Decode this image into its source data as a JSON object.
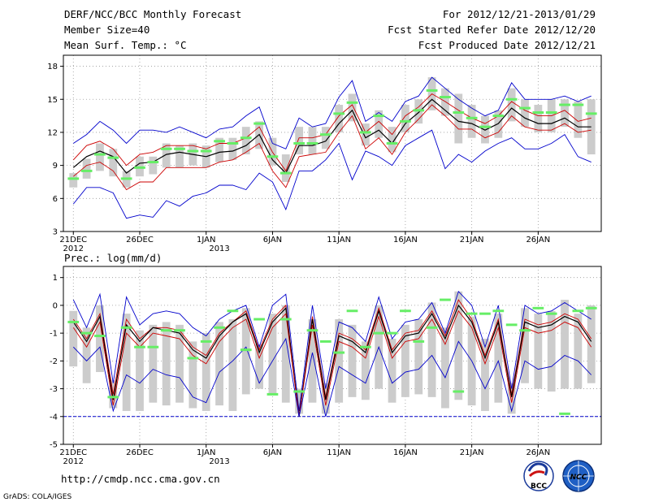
{
  "header": {
    "title": "DERF/NCC/BCC Monthly Forecast",
    "member_size": "Member Size=40",
    "variable": "Mean Surf. Temp.: °C",
    "period": "For 2012/12/21-2013/01/29",
    "fcst_started": "Fcst Started Refer Date 2012/12/20",
    "fcst_produced": "Fcst Produced Date 2012/12/21"
  },
  "footer": {
    "url": "http://cmdp.ncc.cma.gov.cn",
    "credit": "GrADS: COLA/IGES",
    "logo_left_text": "BCC",
    "logo_right_text": "NCC"
  },
  "colors": {
    "mean": "#000000",
    "spread": "#cc0000",
    "extreme": "#0000cc",
    "box": "#cccccc",
    "median": "#66ee66",
    "zero_line": "#0000cc"
  },
  "chart_data": [
    {
      "type": "line",
      "title": "Mean Surf. Temp.: °C",
      "days": 40,
      "ylim": [
        3,
        19
      ],
      "yticks": [
        3,
        6,
        9,
        12,
        15,
        18
      ],
      "xtick_labels": [
        "21DEC",
        "26DEC",
        "1JAN",
        "6JAN",
        "11JAN",
        "16JAN",
        "21JAN",
        "26JAN"
      ],
      "year_labels": [
        {
          "day": 1,
          "text": "2012"
        },
        {
          "day": 12,
          "text": "2013"
        }
      ],
      "series": [
        {
          "name": "max",
          "color_key": "extreme",
          "values": [
            11.0,
            11.8,
            13.0,
            12.2,
            11.0,
            12.2,
            12.2,
            12.0,
            12.5,
            12.0,
            11.5,
            12.3,
            12.5,
            13.5,
            14.3,
            11.0,
            10.5,
            13.3,
            12.5,
            12.8,
            15.2,
            16.7,
            13.0,
            13.8,
            13.0,
            14.8,
            15.3,
            17.0,
            16.0,
            15.0,
            14.2,
            13.5,
            14.0,
            16.5,
            15.0,
            15.0,
            15.0,
            15.3,
            14.8,
            15.3
          ]
        },
        {
          "name": "upper",
          "color_key": "spread",
          "values": [
            9.5,
            10.8,
            11.2,
            10.5,
            9.0,
            10.0,
            10.2,
            10.8,
            10.8,
            10.8,
            10.5,
            11.0,
            11.0,
            11.5,
            12.5,
            10.2,
            8.5,
            11.5,
            11.5,
            11.8,
            13.5,
            14.5,
            12.0,
            13.0,
            11.8,
            13.5,
            14.3,
            15.5,
            14.8,
            14.0,
            13.3,
            12.8,
            13.5,
            14.8,
            14.0,
            13.5,
            13.5,
            14.0,
            13.0,
            13.3
          ]
        },
        {
          "name": "mean",
          "color_key": "mean",
          "values": [
            8.8,
            9.8,
            10.3,
            9.8,
            8.3,
            9.2,
            9.3,
            10.0,
            10.2,
            10.0,
            9.8,
            10.2,
            10.3,
            10.8,
            11.8,
            9.5,
            8.3,
            10.8,
            10.8,
            11.2,
            12.8,
            14.0,
            11.5,
            12.2,
            11.0,
            12.8,
            13.8,
            15.0,
            14.0,
            13.0,
            12.8,
            12.2,
            12.8,
            14.2,
            13.3,
            12.8,
            12.8,
            13.3,
            12.5,
            12.5
          ]
        },
        {
          "name": "lower",
          "color_key": "spread",
          "values": [
            8.0,
            9.0,
            9.3,
            8.5,
            6.8,
            7.5,
            7.5,
            8.8,
            8.8,
            8.8,
            8.8,
            9.3,
            9.5,
            10.2,
            11.0,
            8.5,
            7.0,
            9.8,
            10.0,
            10.2,
            12.0,
            13.5,
            10.5,
            11.5,
            10.0,
            12.0,
            13.2,
            14.5,
            13.5,
            12.3,
            12.3,
            11.5,
            12.0,
            13.5,
            12.5,
            12.2,
            12.2,
            12.8,
            12.0,
            12.2
          ]
        },
        {
          "name": "min",
          "color_key": "extreme",
          "values": [
            5.5,
            7.0,
            7.0,
            6.5,
            4.2,
            4.5,
            4.3,
            5.8,
            5.3,
            6.2,
            6.5,
            7.2,
            7.2,
            6.8,
            8.3,
            7.5,
            5.0,
            8.5,
            8.5,
            9.5,
            11.0,
            7.7,
            10.3,
            9.8,
            9.0,
            10.8,
            11.5,
            12.2,
            8.7,
            10.0,
            9.3,
            10.3,
            11.0,
            11.5,
            10.5,
            10.5,
            11.0,
            11.8,
            9.8,
            9.3
          ]
        }
      ],
      "boxes": [
        {
          "day": 1,
          "low": 7.0,
          "high": 8.3
        },
        {
          "day": 2,
          "low": 7.8,
          "high": 9.6
        },
        {
          "day": 3,
          "low": 8.5,
          "high": 11.0
        },
        {
          "day": 4,
          "low": 8.0,
          "high": 10.5
        },
        {
          "day": 5,
          "low": 7.0,
          "high": 8.5
        },
        {
          "day": 6,
          "low": 8.0,
          "high": 9.8
        },
        {
          "day": 7,
          "low": 8.2,
          "high": 9.8
        },
        {
          "day": 8,
          "low": 8.8,
          "high": 11.0
        },
        {
          "day": 9,
          "low": 8.8,
          "high": 10.8
        },
        {
          "day": 10,
          "low": 9.0,
          "high": 11.0
        },
        {
          "day": 11,
          "low": 8.8,
          "high": 10.8
        },
        {
          "day": 12,
          "low": 9.3,
          "high": 11.5
        },
        {
          "day": 13,
          "low": 9.5,
          "high": 11.5
        },
        {
          "day": 14,
          "low": 10.0,
          "high": 12.5
        },
        {
          "day": 15,
          "low": 10.5,
          "high": 13.0
        },
        {
          "day": 16,
          "low": 9.0,
          "high": 11.5
        },
        {
          "day": 17,
          "low": 7.5,
          "high": 10.0
        },
        {
          "day": 18,
          "low": 10.0,
          "high": 12.5
        },
        {
          "day": 19,
          "low": 10.0,
          "high": 12.5
        },
        {
          "day": 20,
          "low": 10.5,
          "high": 12.5
        },
        {
          "day": 21,
          "low": 12.0,
          "high": 14.5
        },
        {
          "day": 22,
          "low": 13.0,
          "high": 15.5
        },
        {
          "day": 23,
          "low": 10.8,
          "high": 12.8
        },
        {
          "day": 24,
          "low": 11.5,
          "high": 14.0
        },
        {
          "day": 25,
          "low": 10.2,
          "high": 12.5
        },
        {
          "day": 26,
          "low": 12.0,
          "high": 14.5
        },
        {
          "day": 27,
          "low": 12.8,
          "high": 15.0
        },
        {
          "day": 28,
          "low": 14.0,
          "high": 17.0
        },
        {
          "day": 29,
          "low": 13.5,
          "high": 16.0
        },
        {
          "day": 30,
          "low": 11.0,
          "high": 15.5
        },
        {
          "day": 31,
          "low": 11.5,
          "high": 14.5
        },
        {
          "day": 32,
          "low": 11.0,
          "high": 13.5
        },
        {
          "day": 33,
          "low": 11.5,
          "high": 14.0
        },
        {
          "day": 34,
          "low": 13.0,
          "high": 16.0
        },
        {
          "day": 35,
          "low": 12.5,
          "high": 15.0
        },
        {
          "day": 36,
          "low": 12.0,
          "high": 14.5
        },
        {
          "day": 37,
          "low": 12.0,
          "high": 15.0
        },
        {
          "day": 38,
          "low": 12.5,
          "high": 15.0
        },
        {
          "day": 39,
          "low": 11.5,
          "high": 14.8
        },
        {
          "day": 40,
          "low": 10.0,
          "high": 15.0
        }
      ],
      "medians": [
        7.8,
        8.5,
        10.0,
        9.7,
        7.8,
        8.8,
        9.3,
        10.5,
        10.5,
        10.3,
        10.3,
        11.2,
        11.0,
        11.5,
        12.8,
        9.8,
        8.3,
        11.0,
        11.0,
        11.8,
        13.7,
        14.7,
        12.0,
        13.5,
        11.0,
        13.0,
        14.0,
        15.8,
        15.2,
        13.8,
        13.3,
        12.5,
        13.5,
        15.0,
        14.2,
        13.8,
        13.8,
        14.5,
        14.5,
        13.7
      ]
    },
    {
      "type": "line",
      "title": "Prec.: log(mm/d)",
      "days": 40,
      "ylim": [
        -5,
        1.4
      ],
      "yticks": [
        -5,
        -4,
        -3,
        -2,
        -1,
        0,
        1
      ],
      "zero_line_value": -4,
      "xtick_labels": [
        "21DEC",
        "26DEC",
        "1JAN",
        "6JAN",
        "11JAN",
        "16JAN",
        "21JAN",
        "26JAN"
      ],
      "year_labels": [
        {
          "day": 1,
          "text": "2012"
        },
        {
          "day": 12,
          "text": "2013"
        }
      ],
      "series": [
        {
          "name": "max",
          "color_key": "extreme",
          "values": [
            0.2,
            -0.8,
            0.4,
            -2.8,
            0.3,
            -0.7,
            -0.3,
            -0.2,
            -0.3,
            -0.8,
            -1.1,
            -0.5,
            -0.2,
            0.0,
            -1.5,
            0.0,
            0.4,
            -3.8,
            0.0,
            -3.0,
            -0.6,
            -0.8,
            -1.3,
            0.3,
            -1.2,
            -0.6,
            -0.5,
            0.1,
            -1.0,
            0.5,
            0.0,
            -1.5,
            0.0,
            -3.0,
            0.0,
            -0.3,
            -0.2,
            0.1,
            -0.2,
            -0.5
          ]
        },
        {
          "name": "upper",
          "color_key": "spread",
          "values": [
            -0.5,
            -1.2,
            -0.3,
            -3.2,
            -0.5,
            -1.2,
            -0.8,
            -0.8,
            -0.9,
            -1.5,
            -1.8,
            -1.0,
            -0.6,
            -0.2,
            -1.6,
            -0.5,
            0.0,
            -4.0,
            -0.4,
            -3.3,
            -1.0,
            -1.2,
            -1.6,
            -0.1,
            -1.6,
            -1.0,
            -0.9,
            -0.2,
            -1.1,
            0.2,
            -0.5,
            -1.8,
            -0.5,
            -3.2,
            -0.5,
            -0.7,
            -0.6,
            -0.3,
            -0.5,
            -1.2
          ]
        },
        {
          "name": "mean",
          "color_key": "mean",
          "values": [
            -0.6,
            -1.3,
            -0.4,
            -3.4,
            -0.7,
            -1.3,
            -0.8,
            -0.9,
            -1.0,
            -1.6,
            -1.9,
            -1.1,
            -0.6,
            -0.3,
            -1.7,
            -0.6,
            -0.1,
            -4.0,
            -0.5,
            -3.4,
            -1.1,
            -1.3,
            -1.7,
            -0.2,
            -1.7,
            -1.1,
            -1.0,
            -0.3,
            -1.2,
            0.0,
            -0.6,
            -1.9,
            -0.6,
            -3.3,
            -0.6,
            -0.8,
            -0.7,
            -0.4,
            -0.6,
            -1.3
          ]
        },
        {
          "name": "lower",
          "color_key": "spread",
          "values": [
            -0.8,
            -1.5,
            -0.6,
            -3.6,
            -1.0,
            -1.5,
            -1.0,
            -1.1,
            -1.2,
            -1.8,
            -2.1,
            -1.3,
            -0.8,
            -0.5,
            -1.9,
            -0.8,
            -0.3,
            -4.0,
            -0.7,
            -3.6,
            -1.3,
            -1.5,
            -1.9,
            -0.4,
            -1.9,
            -1.3,
            -1.2,
            -0.5,
            -1.4,
            -0.2,
            -0.8,
            -2.1,
            -0.8,
            -3.5,
            -0.8,
            -1.0,
            -0.9,
            -0.6,
            -0.8,
            -1.5
          ]
        },
        {
          "name": "min",
          "color_key": "extreme",
          "values": [
            -1.5,
            -2.0,
            -1.5,
            -3.8,
            -2.5,
            -2.8,
            -2.3,
            -2.5,
            -2.6,
            -3.3,
            -3.5,
            -2.4,
            -2.0,
            -1.5,
            -2.8,
            -2.0,
            -1.2,
            -4.0,
            -1.7,
            -4.0,
            -2.2,
            -2.5,
            -2.8,
            -1.5,
            -2.8,
            -2.4,
            -2.3,
            -1.8,
            -2.6,
            -1.3,
            -2.0,
            -3.0,
            -2.0,
            -3.8,
            -2.0,
            -2.3,
            -2.2,
            -1.8,
            -2.0,
            -2.5
          ]
        }
      ],
      "boxes": [
        {
          "day": 1,
          "low": -2.2,
          "high": -0.2
        },
        {
          "day": 2,
          "low": -2.8,
          "high": -0.8
        },
        {
          "day": 3,
          "low": -2.4,
          "high": 0.0
        },
        {
          "day": 4,
          "low": -3.7,
          "high": -2.7
        },
        {
          "day": 5,
          "low": -3.8,
          "high": -0.3
        },
        {
          "day": 6,
          "low": -3.8,
          "high": -0.9
        },
        {
          "day": 7,
          "low": -3.5,
          "high": -0.7
        },
        {
          "day": 8,
          "low": -3.6,
          "high": -0.6
        },
        {
          "day": 9,
          "low": -3.5,
          "high": -0.7
        },
        {
          "day": 10,
          "low": -3.7,
          "high": -1.3
        },
        {
          "day": 11,
          "low": -3.8,
          "high": -1.0
        },
        {
          "day": 12,
          "low": -3.6,
          "high": -0.6
        },
        {
          "day": 13,
          "low": -3.8,
          "high": -0.5
        },
        {
          "day": 14,
          "low": -3.2,
          "high": -0.1
        },
        {
          "day": 15,
          "low": -3.0,
          "high": -1.4
        },
        {
          "day": 16,
          "low": -3.2,
          "high": -0.3
        },
        {
          "day": 17,
          "low": -3.5,
          "high": 0.0
        },
        {
          "day": 18,
          "low": -3.9,
          "high": -3.0
        },
        {
          "day": 19,
          "low": -3.5,
          "high": -0.5
        },
        {
          "day": 20,
          "low": -3.9,
          "high": -2.8
        },
        {
          "day": 21,
          "low": -3.5,
          "high": -0.5
        },
        {
          "day": 22,
          "low": -3.3,
          "high": -0.7
        },
        {
          "day": 23,
          "low": -3.4,
          "high": -1.3
        },
        {
          "day": 24,
          "low": -3.0,
          "high": 0.0
        },
        {
          "day": 25,
          "low": -3.5,
          "high": -1.2
        },
        {
          "day": 26,
          "low": -3.3,
          "high": -0.7
        },
        {
          "day": 27,
          "low": -3.2,
          "high": -0.5
        },
        {
          "day": 28,
          "low": -3.3,
          "high": 0.1
        },
        {
          "day": 29,
          "low": -3.7,
          "high": -0.8
        },
        {
          "day": 30,
          "low": -3.4,
          "high": 0.5
        },
        {
          "day": 31,
          "low": -3.6,
          "high": -0.4
        },
        {
          "day": 32,
          "low": -3.8,
          "high": -1.2
        },
        {
          "day": 33,
          "low": -3.5,
          "high": -0.3
        },
        {
          "day": 34,
          "low": -3.9,
          "high": -2.8
        },
        {
          "day": 35,
          "low": -2.8,
          "high": -0.1
        },
        {
          "day": 36,
          "low": -3.0,
          "high": -0.3
        },
        {
          "day": 37,
          "low": -3.1,
          "high": -0.2
        },
        {
          "day": 38,
          "low": -3.0,
          "high": 0.2
        },
        {
          "day": 39,
          "low": -3.0,
          "high": -0.3
        },
        {
          "day": 40,
          "low": -2.8,
          "high": 0.0
        }
      ],
      "medians": [
        -0.6,
        -1.0,
        -1.1,
        -3.3,
        -0.8,
        -1.5,
        -1.5,
        -0.9,
        -0.9,
        -1.9,
        -1.3,
        -0.8,
        -0.2,
        -1.6,
        -0.5,
        -3.2,
        -0.5,
        -3.1,
        -0.9,
        -1.3,
        -1.7,
        -0.2,
        -1.5,
        -1.0,
        -1.0,
        -0.2,
        -1.3,
        -0.8,
        0.2,
        -3.1,
        -0.3,
        -0.3,
        -0.2,
        -0.7,
        -0.9,
        -0.1,
        -0.3,
        -3.9,
        -0.2,
        -0.1
      ]
    }
  ]
}
